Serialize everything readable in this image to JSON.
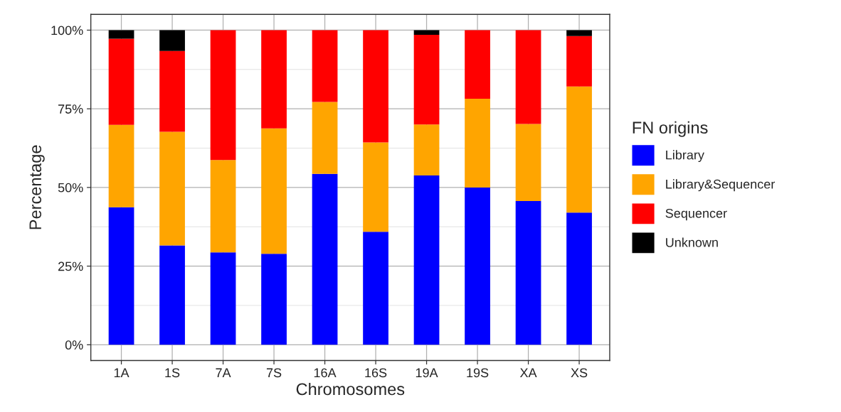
{
  "chart_data": {
    "type": "bar",
    "stacked": true,
    "xlabel": "Chromosomes",
    "ylabel": "Percentage",
    "legend_title": "FN origins",
    "categories": [
      "1A",
      "1S",
      "7A",
      "7S",
      "16A",
      "16S",
      "19A",
      "19S",
      "XA",
      "XS"
    ],
    "series": [
      {
        "name": "Library",
        "color": "#0000ff",
        "values": [
          43.7,
          31.6,
          29.4,
          28.9,
          54.3,
          35.9,
          53.8,
          50.0,
          45.7,
          42.0
        ]
      },
      {
        "name": "Library&Sequencer",
        "color": "#ffa500",
        "values": [
          26.2,
          36.1,
          29.3,
          39.9,
          22.9,
          28.4,
          16.2,
          28.2,
          24.5,
          40.1
        ]
      },
      {
        "name": "Sequencer",
        "color": "#ff0000",
        "values": [
          27.4,
          25.7,
          41.3,
          31.2,
          22.8,
          35.7,
          28.5,
          21.8,
          29.8,
          16.0
        ]
      },
      {
        "name": "Unknown",
        "color": "#000000",
        "values": [
          2.7,
          6.6,
          0,
          0,
          0,
          0,
          1.5,
          0,
          0,
          1.9
        ]
      }
    ],
    "ylim": [
      -5,
      105
    ],
    "yticks": [
      {
        "value": 0,
        "label": "0%"
      },
      {
        "value": 25,
        "label": "25%"
      },
      {
        "value": 50,
        "label": "50%"
      },
      {
        "value": 75,
        "label": "75%"
      },
      {
        "value": 100,
        "label": "100%"
      }
    ],
    "grid": true,
    "legend": "right"
  }
}
